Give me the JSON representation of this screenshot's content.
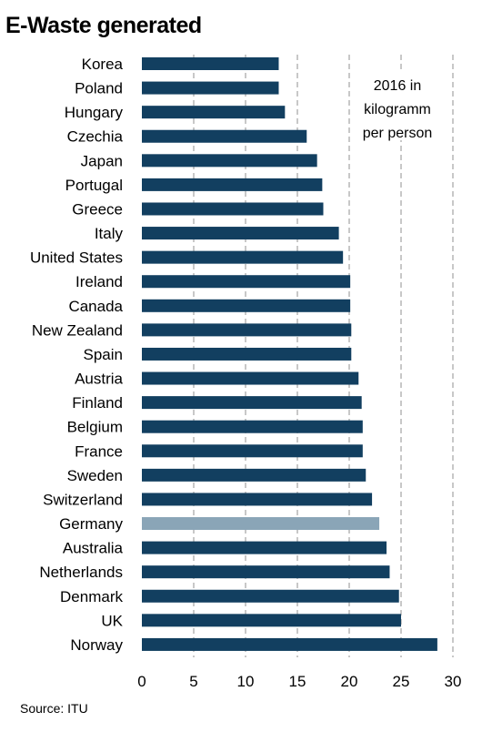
{
  "title": "E-Waste generated",
  "source": "Source: ITU",
  "chart_data": {
    "type": "bar",
    "orientation": "horizontal",
    "annotation": [
      "2016 in",
      "kilogramm",
      "per person"
    ],
    "categories": [
      "Korea",
      "Poland",
      "Hungary",
      "Czechia",
      "Japan",
      "Portugal",
      "Greece",
      "Italy",
      "United States",
      "Ireland",
      "Canada",
      "New Zealand",
      "Spain",
      "Austria",
      "Finland",
      "Belgium",
      "France",
      "Sweden",
      "Switzerland",
      "Germany",
      "Australia",
      "Netherlands",
      "Denmark",
      "UK",
      "Norway"
    ],
    "values": [
      13.2,
      13.2,
      13.8,
      15.9,
      16.9,
      17.4,
      17.5,
      19.0,
      19.4,
      20.1,
      20.1,
      20.2,
      20.2,
      20.9,
      21.2,
      21.3,
      21.3,
      21.6,
      22.2,
      22.9,
      23.6,
      23.9,
      24.8,
      25.0,
      28.5
    ],
    "highlight": "Germany",
    "xlim": [
      0,
      30
    ],
    "xticks": [
      0,
      5,
      10,
      15,
      20,
      25,
      30
    ],
    "grid": "vertical dashed",
    "colors": {
      "bar": "#123f60",
      "highlight": "#8aa5b7",
      "grid": "#909090"
    }
  }
}
